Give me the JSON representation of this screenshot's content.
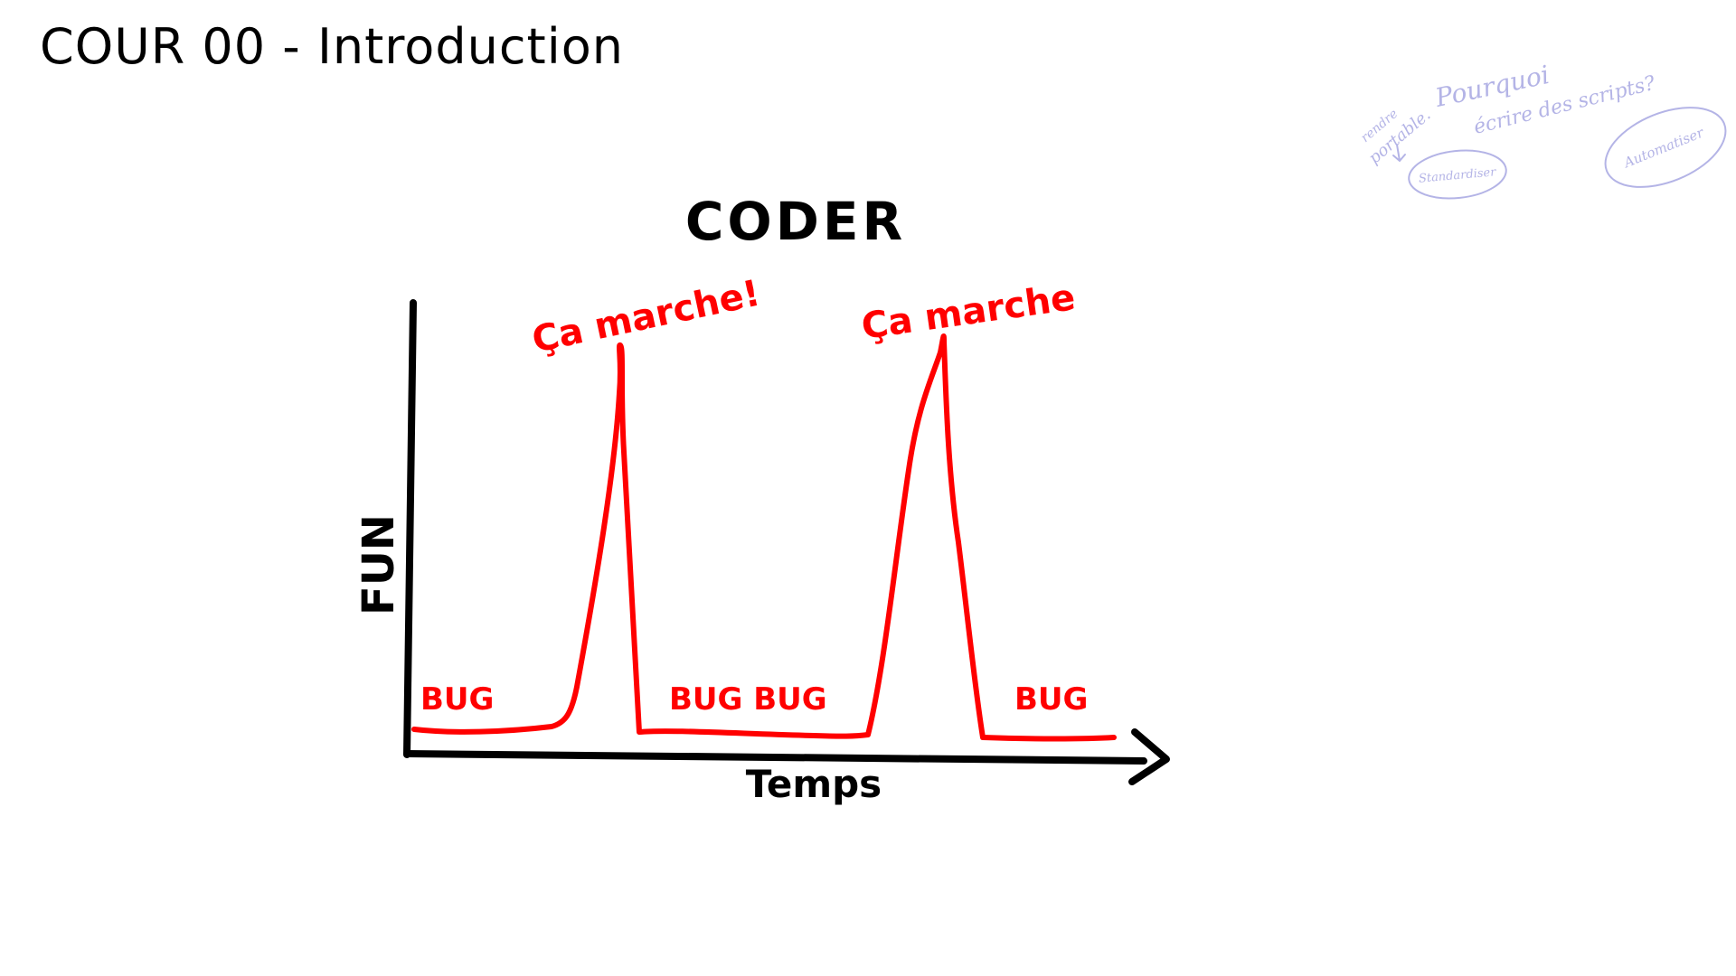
{
  "slide": {
    "title": "COUR 00 - Introduction"
  },
  "drawing": {
    "heading": "CODER",
    "y_axis_label": "FUN",
    "x_axis_label": "Temps",
    "peak_labels": [
      "Ça marche!",
      "Ça marche"
    ],
    "bug_labels": [
      "BUG",
      "BUG BUG",
      "BUG"
    ]
  },
  "notes": {
    "question_line1": "Pourquoi",
    "question_line2": "écrire des scripts?",
    "aside_line1": "rendre",
    "aside_line2": "portable.",
    "bubble_left": "Standardiser",
    "bubble_right": "Automatiser"
  },
  "colors": {
    "ink": "#000000",
    "curve": "#ff0000",
    "notes": "#b4b4e6"
  }
}
